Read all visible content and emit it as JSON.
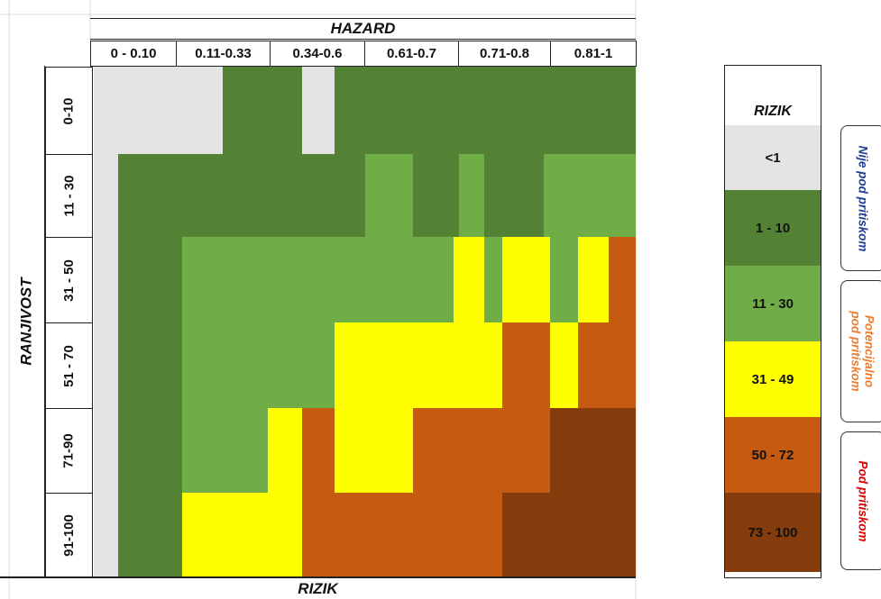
{
  "matrix": {
    "column_header": "HAZARD",
    "row_header": "RANJIVOST",
    "bottom_label": "RIZIK",
    "columns": [
      "0 - 0.10",
      "0.11-0.33",
      "0.34-0.6",
      "0.61-0.7",
      "0.71-0.8",
      "0.81-1"
    ],
    "rows": [
      "0-10",
      "11 - 30",
      "31 - 50",
      "51 - 70",
      "71-90",
      "91-100"
    ]
  },
  "legend": {
    "title": "RIZIK",
    "items": [
      {
        "label": "<1",
        "color": "#e4e4e4"
      },
      {
        "label": "1 - 10",
        "color": "#548235"
      },
      {
        "label": "11 - 30",
        "color": "#70ad47"
      },
      {
        "label": "31 - 49",
        "color": "#ffff00"
      },
      {
        "label": "50 - 72",
        "color": "#c55a11"
      },
      {
        "label": "73 - 100",
        "color": "#843c0c"
      }
    ]
  },
  "categories": [
    {
      "label": "Nije pod pritiskom",
      "color": "#1f3f99"
    },
    {
      "label": "Potencijalno pod pritiskom",
      "color": "#ed7d31"
    },
    {
      "label": "Pod pritiskom",
      "color": "#e00000"
    }
  ],
  "risk_levels": [
    [
      0,
      0,
      0,
      0,
      1,
      1,
      0,
      1,
      1,
      1,
      1,
      1,
      1,
      1,
      1,
      1,
      1,
      1
    ],
    [
      0,
      1,
      1,
      1,
      1,
      1,
      1,
      1,
      2,
      1,
      1,
      2,
      1,
      1,
      2,
      2,
      2,
      2
    ],
    [
      0,
      1,
      1,
      2,
      2,
      2,
      2,
      2,
      2,
      2,
      3,
      3,
      2,
      3,
      3,
      2,
      3,
      4
    ],
    [
      0,
      1,
      1,
      2,
      2,
      2,
      2,
      3,
      3,
      3,
      3,
      3,
      3,
      4,
      4,
      3,
      4,
      4
    ],
    [
      0,
      1,
      1,
      2,
      2,
      3,
      4,
      3,
      3,
      4,
      4,
      4,
      4,
      4,
      4,
      5,
      5,
      5
    ],
    [
      0,
      1,
      1,
      3,
      3,
      3,
      4,
      4,
      4,
      4,
      4,
      4,
      4,
      5,
      5,
      5,
      5,
      5
    ]
  ]
}
